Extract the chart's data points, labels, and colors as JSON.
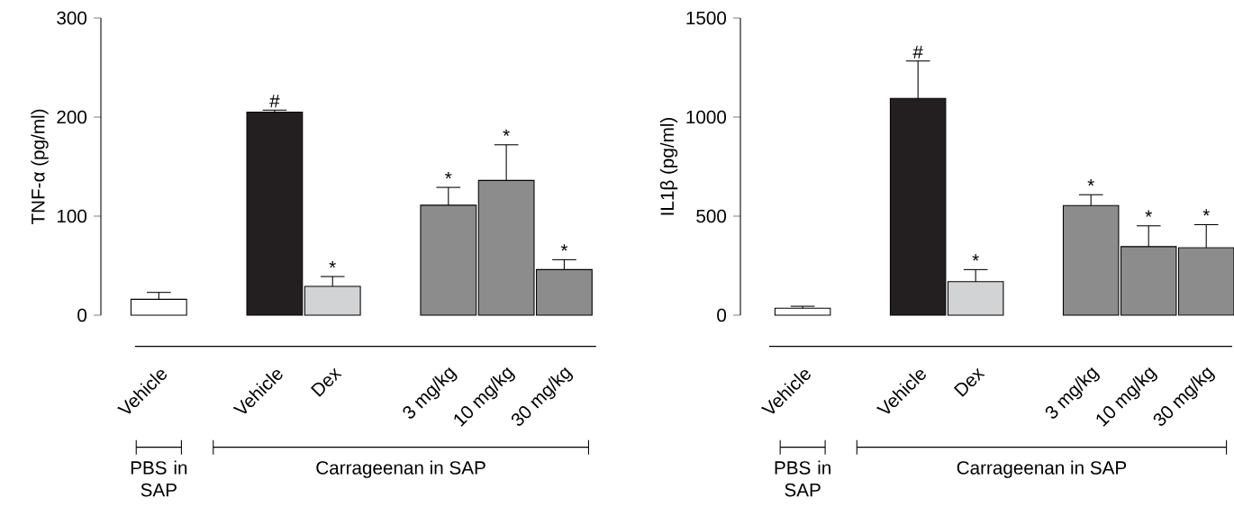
{
  "chart_data": [
    {
      "type": "bar",
      "ylabel": "TNF-α (pg/ml)",
      "categories": [
        "Vehicle",
        null,
        "Vehicle",
        "Dex",
        null,
        "3 mg/kg",
        "10 mg/kg",
        "30 mg/kg"
      ],
      "values": [
        16,
        null,
        205,
        29,
        null,
        111,
        136,
        46
      ],
      "errors": [
        [
          16,
          23
        ],
        null,
        [
          205,
          207
        ],
        [
          29,
          39
        ],
        null,
        [
          111,
          129
        ],
        [
          136,
          172
        ],
        [
          46,
          56
        ]
      ],
      "colors": [
        "#ffffff",
        null,
        "#231f20",
        "#d1d3d4",
        null,
        "#8c8c8c",
        "#8c8c8c",
        "#8c8c8c"
      ],
      "value_labels": [
        null,
        null,
        "#",
        "*",
        null,
        "*",
        "*",
        "*"
      ],
      "ylim": [
        0,
        300
      ],
      "yticks": [
        {
          "value": 0,
          "label": "0"
        },
        {
          "value": 100,
          "label": "100"
        },
        {
          "value": 200,
          "label": "200"
        },
        {
          "value": 300,
          "label": "300"
        }
      ],
      "annotations": [
        "PBS in SAP",
        "Carrageenan in SAP"
      ]
    },
    {
      "type": "bar",
      "ylabel": "IL1β (pg/ml)",
      "categories": [
        "Vehicle",
        null,
        "Vehicle",
        "Dex",
        null,
        "3 mg/kg",
        "10 mg/kg",
        "30 mg/kg"
      ],
      "values": [
        35,
        null,
        1094,
        169,
        null,
        553,
        346,
        341
      ],
      "errors": [
        [
          35,
          45
        ],
        null,
        [
          1094,
          1283
        ],
        [
          169,
          230
        ],
        null,
        [
          553,
          608
        ],
        [
          346,
          451
        ],
        [
          341,
          457
        ]
      ],
      "colors": [
        "#ffffff",
        null,
        "#231f20",
        "#d1d3d4",
        null,
        "#8c8c8c",
        "#8c8c8c",
        "#8c8c8c"
      ],
      "value_labels": [
        null,
        null,
        "#",
        "*",
        null,
        "*",
        "*",
        "*"
      ],
      "ylim": [
        0,
        1500
      ],
      "yticks": [
        {
          "value": 0,
          "label": "0"
        },
        {
          "value": 500,
          "label": "500"
        },
        {
          "value": 1000,
          "label": "1000"
        },
        {
          "value": 1500,
          "label": "1500"
        }
      ],
      "annotations": [
        "PBS in SAP",
        "Carrageenan in SAP"
      ]
    }
  ]
}
